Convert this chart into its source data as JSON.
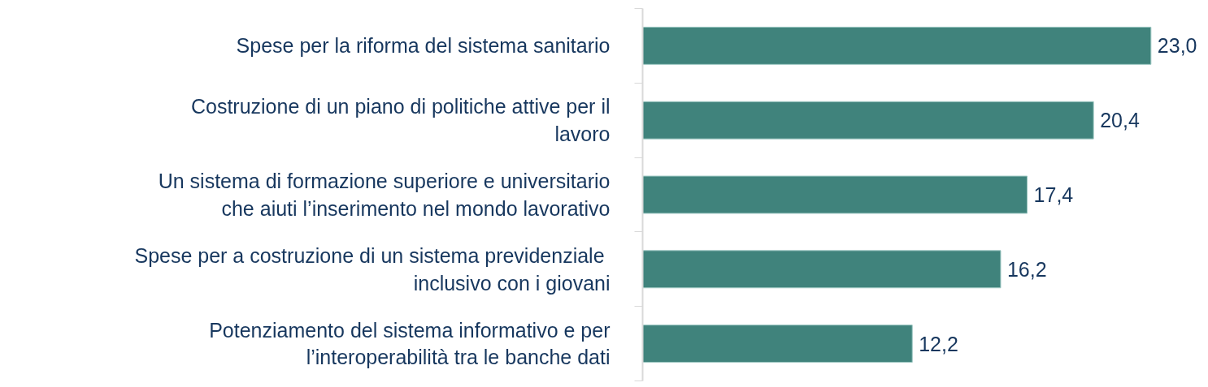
{
  "chart_data": {
    "type": "bar",
    "orientation": "horizontal",
    "categories": [
      "Spese per la riforma del sistema sanitario",
      "Costruzione di un piano di politiche attive per il lavoro",
      "Un sistema di formazione superiore e universitario che aiuti l’inserimento nel mondo lavorativo",
      "Spese per  a costruzione di un sistema previdenziale inclusivo con i giovani",
      "Potenziamento del sistema informativo e per l’interoperabilità tra le banche dati"
    ],
    "values": [
      23.0,
      20.4,
      17.4,
      16.2,
      12.2
    ],
    "value_labels": [
      "23,0",
      "20,4",
      "17,4",
      "16,2",
      "12,2"
    ],
    "color": "#40837c"
  }
}
